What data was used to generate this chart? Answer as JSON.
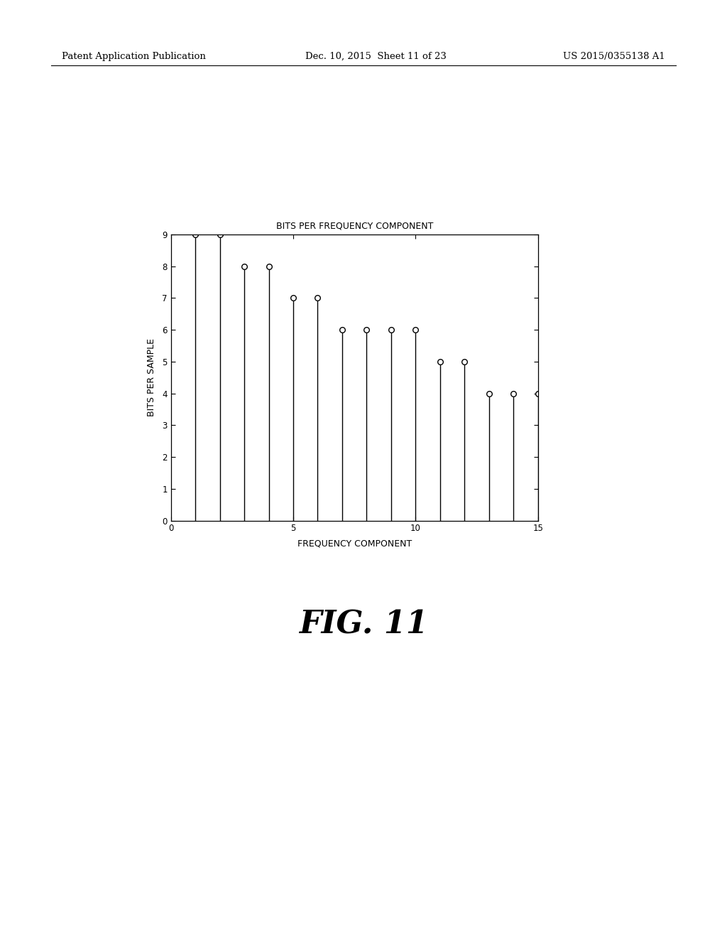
{
  "x_values": [
    1,
    2,
    3,
    4,
    5,
    6,
    7,
    8,
    9,
    10,
    11,
    12,
    13,
    14,
    15
  ],
  "y_values": [
    9,
    9,
    8,
    8,
    7,
    7,
    6,
    6,
    6,
    6,
    5,
    5,
    4,
    4,
    4
  ],
  "title": "BITS PER FREQUENCY COMPONENT",
  "xlabel": "FREQUENCY COMPONENT",
  "ylabel": "BITS PER SAMPLE",
  "xlim": [
    0,
    15
  ],
  "ylim": [
    0,
    9
  ],
  "xticks": [
    0,
    5,
    10,
    15
  ],
  "yticks": [
    0,
    1,
    2,
    3,
    4,
    5,
    6,
    7,
    8,
    9
  ],
  "fig_caption": "FIG. 11",
  "header_left": "Patent Application Publication",
  "header_center": "Dec. 10, 2015  Sheet 11 of 23",
  "header_right": "US 2015/0355138 A1",
  "background_color": "#ffffff",
  "line_color": "#000000",
  "marker_color": "#ffffff",
  "marker_edge_color": "#000000"
}
